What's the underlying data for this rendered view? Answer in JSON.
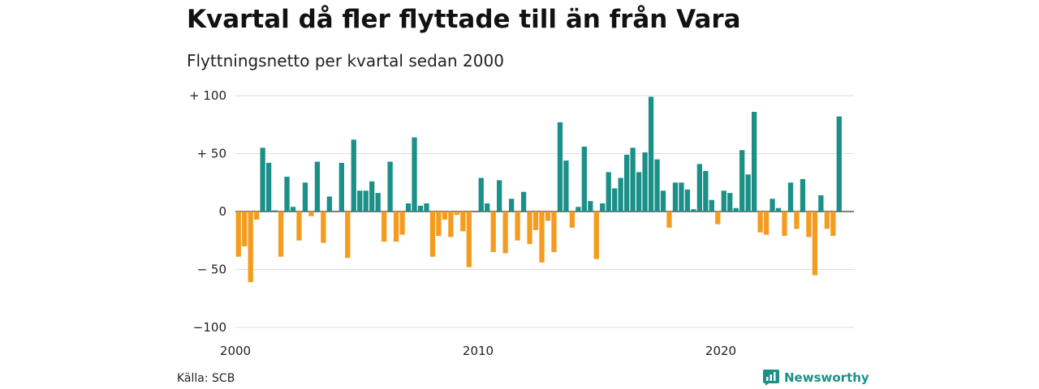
{
  "title": "Kvartal då fler flyttade till än från Vara",
  "subtitle": "Flyttningsnetto per kvartal sedan 2000",
  "source": "Källa: SCB",
  "brand": "Newsworthy",
  "colors": {
    "positive": "#1a9088",
    "negative": "#f39c1f",
    "grid": "#dddddd",
    "zero": "#333333"
  },
  "chart_data": {
    "type": "bar",
    "x_start_year": 2000,
    "x_start_quarter": 1,
    "quarters_per_year": 4,
    "xlim": [
      2000,
      2025.5
    ],
    "ylim": [
      -100,
      100
    ],
    "y_ticks": [
      100,
      50,
      0,
      -50,
      -100
    ],
    "y_tick_labels": [
      "+ 100",
      "+  50",
      "0",
      "− 50",
      "−100"
    ],
    "x_ticks": [
      2000,
      2010,
      2020
    ],
    "x_tick_labels": [
      "2000",
      "2010",
      "2020"
    ],
    "values": [
      -39,
      -30,
      -61,
      -7,
      55,
      42,
      1,
      -39,
      30,
      4,
      -25,
      25,
      -4,
      43,
      -27,
      13,
      0,
      42,
      -40,
      62,
      18,
      18,
      26,
      16,
      -26,
      43,
      -26,
      -20,
      7,
      64,
      5,
      7,
      -39,
      -21,
      -7,
      -22,
      -3,
      -17,
      -48,
      0,
      29,
      7,
      -35,
      27,
      -36,
      11,
      -25,
      17,
      -28,
      -16,
      -44,
      -8,
      -35,
      77,
      44,
      -14,
      4,
      56,
      9,
      -41,
      7,
      34,
      20,
      29,
      49,
      55,
      34,
      51,
      99,
      45,
      18,
      -14,
      25,
      25,
      19,
      2,
      41,
      35,
      10,
      -11,
      18,
      16,
      3,
      53,
      32,
      86,
      -18,
      -20,
      11,
      3,
      -21,
      25,
      -15,
      28,
      -22,
      -55,
      14,
      -15,
      -21,
      82
    ]
  }
}
